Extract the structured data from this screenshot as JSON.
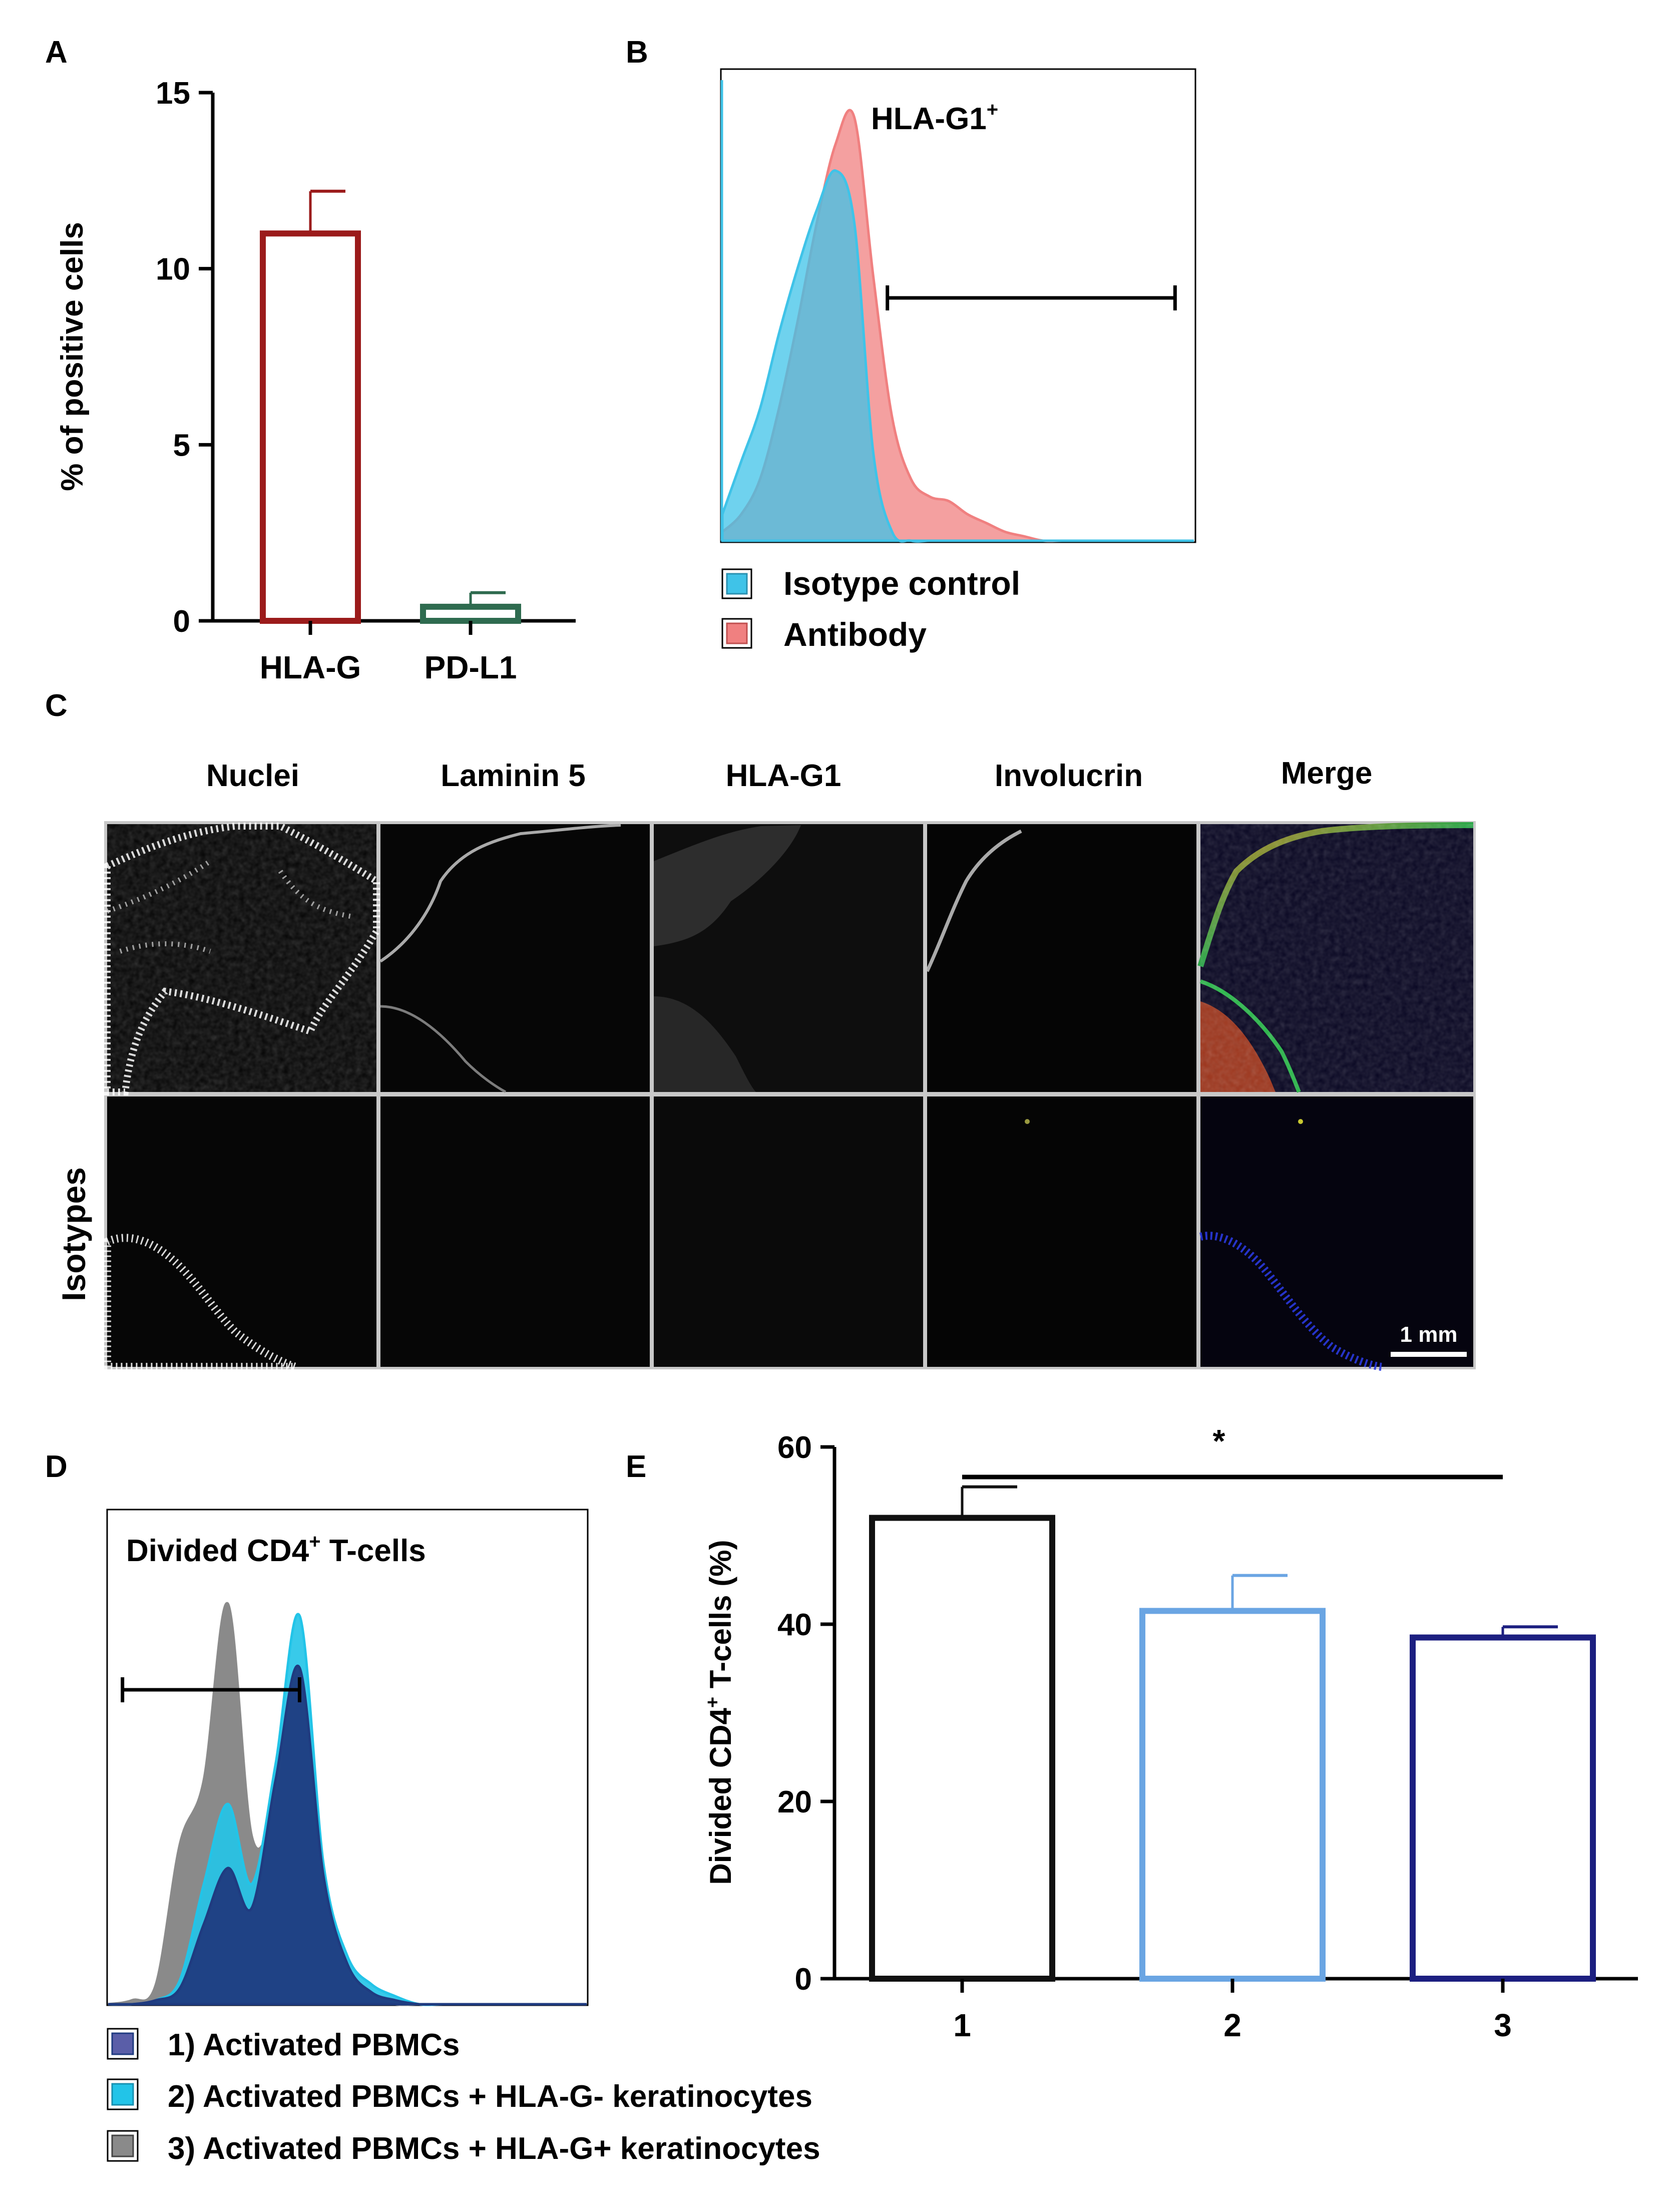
{
  "panels": {
    "A": "A",
    "B": "B",
    "C": "C",
    "D": "D",
    "E": "E"
  },
  "chart_data": [
    {
      "panel": "A",
      "type": "bar",
      "categories": [
        "HLA-G",
        "PD-L1"
      ],
      "values": [
        11.0,
        0.4
      ],
      "errors": [
        1.2,
        0.4
      ],
      "colors": [
        "#9b1b1b",
        "#2e6b4f"
      ],
      "ylabel": "% of positive cells",
      "ylim": [
        0,
        15
      ],
      "yticks": [
        "0",
        "5",
        "10",
        "15"
      ]
    },
    {
      "panel": "B",
      "type": "area",
      "title": "HLA-G1",
      "title_sup": "+",
      "x": [
        0,
        0.04,
        0.08,
        0.12,
        0.16,
        0.2,
        0.24,
        0.28,
        0.32,
        0.36,
        0.4,
        0.44,
        0.48,
        0.52,
        0.56,
        0.6,
        0.64,
        0.68,
        0.72,
        0.76,
        0.8,
        0.84,
        0.88,
        0.92,
        0.96,
        1.0
      ],
      "series": [
        {
          "name": "Isotype control",
          "color": "#3fc3e8",
          "values": [
            0.06,
            0.18,
            0.3,
            0.47,
            0.62,
            0.75,
            0.84,
            0.72,
            0.2,
            0.02,
            0.0,
            0.0,
            0.0,
            0.0,
            0.0,
            0.0,
            0.0,
            0.0,
            0.0,
            0.0,
            0.0,
            0.0,
            0.0,
            0.0,
            0.0,
            0.0
          ]
        },
        {
          "name": "Antibody",
          "color": "#f08080",
          "values": [
            0.02,
            0.06,
            0.14,
            0.3,
            0.5,
            0.72,
            0.9,
            0.96,
            0.6,
            0.28,
            0.14,
            0.1,
            0.09,
            0.06,
            0.04,
            0.02,
            0.01,
            0.0,
            0.0,
            0.0,
            0.0,
            0.0,
            0.0,
            0.0,
            0.0,
            0.0
          ]
        }
      ],
      "gate": [
        0.35,
        0.96
      ]
    },
    {
      "panel": "D",
      "type": "area",
      "title": "Divided CD4",
      "title_sup": "+",
      "title_suffix": " T-cells",
      "x": [
        0,
        0.05,
        0.1,
        0.15,
        0.2,
        0.25,
        0.3,
        0.35,
        0.4,
        0.45,
        0.5,
        0.55,
        0.6,
        0.65,
        0.7,
        0.75,
        0.8,
        0.85,
        0.9,
        0.95,
        1.0
      ],
      "series": [
        {
          "name": "1) Activated PBMCs",
          "color": "#1f3b80",
          "values": [
            0,
            0,
            0.01,
            0.04,
            0.2,
            0.34,
            0.24,
            0.56,
            0.84,
            0.32,
            0.1,
            0.03,
            0.01,
            0,
            0,
            0,
            0,
            0,
            0,
            0,
            0
          ]
        },
        {
          "name": "2) Activated PBMCs + HLA-G- keratinocytes",
          "color": "#22c4e8",
          "values": [
            0,
            0,
            0.01,
            0.06,
            0.3,
            0.5,
            0.3,
            0.6,
            0.97,
            0.35,
            0.12,
            0.05,
            0.02,
            0,
            0,
            0,
            0,
            0,
            0,
            0,
            0
          ]
        },
        {
          "name": "3) Activated PBMCs + HLA-G+ keratinocytes",
          "color": "#8a8a8a",
          "values": [
            0,
            0.01,
            0.05,
            0.4,
            0.56,
            1.0,
            0.42,
            0.5,
            0.82,
            0.3,
            0.08,
            0.02,
            0,
            0,
            0,
            0,
            0,
            0,
            0,
            0,
            0
          ]
        }
      ],
      "gate": [
        0.03,
        0.4
      ]
    },
    {
      "panel": "E",
      "type": "bar",
      "categories": [
        "1",
        "2",
        "3"
      ],
      "values": [
        52,
        41.5,
        38.5
      ],
      "errors": [
        3.5,
        4,
        1.2
      ],
      "colors": [
        "#111111",
        "#6aa5e3",
        "#1c1f80"
      ],
      "ylabel_prefix": "Divided CD4",
      "ylabel_sup": "+",
      "ylabel_suffix": " T-cells (%)",
      "ylim": [
        0,
        60
      ],
      "yticks": [
        "0",
        "20",
        "40",
        "60"
      ],
      "significance": "*"
    }
  ],
  "micrograph": {
    "columns": [
      "Nuclei",
      "Laminin 5",
      "HLA-G1",
      "Involucrin",
      "Merge"
    ],
    "row_label": "Isotypes",
    "scale_bar": "1 mm"
  }
}
